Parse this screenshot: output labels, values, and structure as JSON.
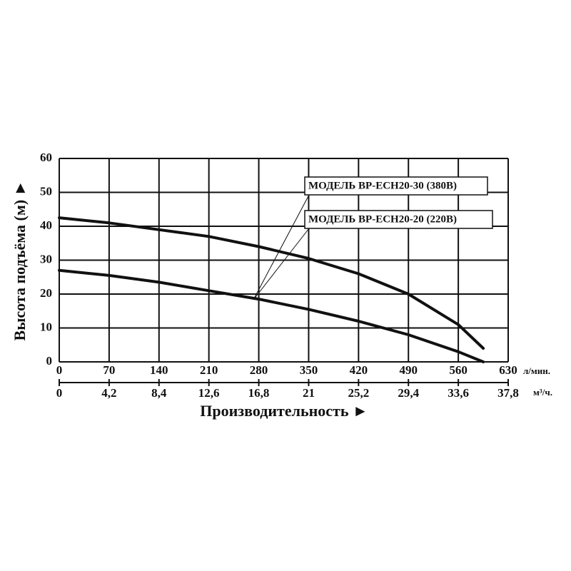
{
  "chart_data": {
    "type": "line",
    "y_label": "Высота подъёма (м) ►",
    "x_label": "Производительность ►",
    "x_unit": "л/мин.",
    "x2_unit": "м³/ч.",
    "x": [
      0,
      70,
      140,
      210,
      280,
      350,
      420,
      490,
      560,
      595
    ],
    "series": [
      {
        "name": "МОДЕЛЬ BP-ECH20-30 (380B)",
        "color": "#111111",
        "values": [
          42.5,
          41,
          39,
          37,
          34,
          30.5,
          26,
          20,
          11,
          4
        ]
      },
      {
        "name": "МОДЕЛЬ BP-ECH20-20 (220B)",
        "color": "#111111",
        "values": [
          27,
          25.5,
          23.5,
          21,
          18.5,
          15.5,
          12,
          8,
          3,
          0
        ]
      }
    ],
    "xlim": [
      0,
      630
    ],
    "xticks": [
      0,
      70,
      140,
      210,
      280,
      350,
      420,
      490,
      560,
      630
    ],
    "x2lim": [
      0,
      37.8
    ],
    "x2ticks": [
      0,
      {
        "value": 4.2,
        "label": "4,2"
      },
      {
        "value": 8.4,
        "label": "8,4"
      },
      {
        "value": 12.6,
        "label": "12,6"
      },
      {
        "value": 16.8,
        "label": "16,8"
      },
      21,
      {
        "value": 25.2,
        "label": "25,2"
      },
      {
        "value": 29.4,
        "label": "29,4"
      },
      {
        "value": 33.6,
        "label": "33,6"
      },
      {
        "value": 37.8,
        "label": "37,8"
      }
    ],
    "ylim": [
      0,
      60
    ],
    "yticks": [
      0,
      10,
      20,
      30,
      40,
      50,
      60
    ],
    "grid": true
  }
}
